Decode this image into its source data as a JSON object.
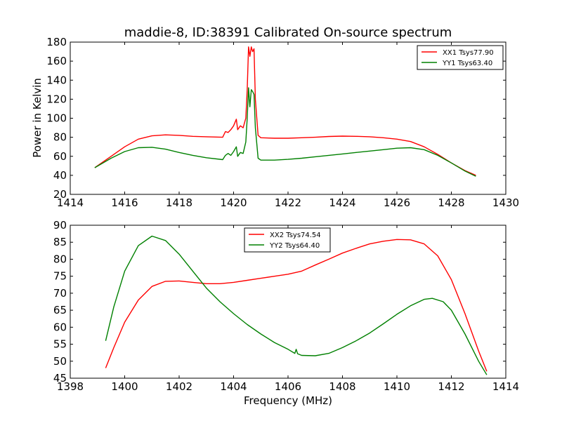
{
  "figure": {
    "title": "maddie-8, ID:38391 Calibrated On-source spectrum",
    "xlabel": "Frequency (MHz)",
    "ylabel_top": "Power in Kelvin"
  },
  "colors": {
    "red": "#ff0000",
    "green": "#008000",
    "axes": "#000000"
  },
  "chart_data": [
    {
      "type": "line",
      "xlim": [
        1414,
        1430
      ],
      "ylim": [
        20,
        180
      ],
      "xticks": [
        1414,
        1416,
        1418,
        1420,
        1422,
        1424,
        1426,
        1428,
        1430
      ],
      "yticks": [
        20,
        40,
        60,
        80,
        100,
        120,
        140,
        160,
        180
      ],
      "ylabel": "Power in Kelvin",
      "legend_position": "top-right",
      "series": [
        {
          "name": "XX1 Tsys77.90",
          "color": "#ff0000",
          "points": [
            [
              1414.9,
              48
            ],
            [
              1415.5,
              60
            ],
            [
              1416.0,
              70
            ],
            [
              1416.5,
              78
            ],
            [
              1417.0,
              81.5
            ],
            [
              1417.5,
              82.5
            ],
            [
              1418.0,
              82
            ],
            [
              1418.5,
              81
            ],
            [
              1419.0,
              80.5
            ],
            [
              1419.6,
              80
            ],
            [
              1419.7,
              86
            ],
            [
              1419.8,
              85
            ],
            [
              1419.9,
              88
            ],
            [
              1420.0,
              92
            ],
            [
              1420.1,
              99
            ],
            [
              1420.15,
              88
            ],
            [
              1420.25,
              92
            ],
            [
              1420.35,
              90
            ],
            [
              1420.45,
              100
            ],
            [
              1420.5,
              130
            ],
            [
              1420.55,
              175
            ],
            [
              1420.6,
              165
            ],
            [
              1420.65,
              175
            ],
            [
              1420.7,
              170
            ],
            [
              1420.75,
              173
            ],
            [
              1420.8,
              120
            ],
            [
              1420.9,
              82
            ],
            [
              1421.0,
              79.5
            ],
            [
              1421.5,
              79
            ],
            [
              1422.0,
              79
            ],
            [
              1422.5,
              79.5
            ],
            [
              1423.0,
              80
            ],
            [
              1423.5,
              80.8
            ],
            [
              1424.0,
              81.2
            ],
            [
              1424.5,
              81
            ],
            [
              1425.0,
              80.5
            ],
            [
              1425.5,
              79.5
            ],
            [
              1426.0,
              78
            ],
            [
              1426.5,
              75.5
            ],
            [
              1427.0,
              70
            ],
            [
              1427.5,
              62
            ],
            [
              1428.0,
              53
            ],
            [
              1428.5,
              45
            ],
            [
              1428.9,
              40
            ]
          ]
        },
        {
          "name": "YY1 Tsys63.40",
          "color": "#008000",
          "points": [
            [
              1414.9,
              48
            ],
            [
              1415.5,
              58
            ],
            [
              1416.0,
              65
            ],
            [
              1416.5,
              69
            ],
            [
              1417.0,
              69.5
            ],
            [
              1417.5,
              67.5
            ],
            [
              1418.0,
              64
            ],
            [
              1418.5,
              61
            ],
            [
              1419.0,
              58.5
            ],
            [
              1419.6,
              56.5
            ],
            [
              1419.7,
              61
            ],
            [
              1419.8,
              63
            ],
            [
              1419.9,
              61
            ],
            [
              1420.0,
              65
            ],
            [
              1420.1,
              70
            ],
            [
              1420.15,
              60
            ],
            [
              1420.25,
              64
            ],
            [
              1420.35,
              63
            ],
            [
              1420.45,
              75
            ],
            [
              1420.5,
              100
            ],
            [
              1420.55,
              132
            ],
            [
              1420.6,
              112
            ],
            [
              1420.65,
              130
            ],
            [
              1420.7,
              128
            ],
            [
              1420.75,
              125
            ],
            [
              1420.8,
              90
            ],
            [
              1420.9,
              58
            ],
            [
              1421.0,
              56
            ],
            [
              1421.5,
              56
            ],
            [
              1422.0,
              56.8
            ],
            [
              1422.5,
              58
            ],
            [
              1423.0,
              59.5
            ],
            [
              1423.5,
              61
            ],
            [
              1424.0,
              62.5
            ],
            [
              1424.5,
              64
            ],
            [
              1425.0,
              65.5
            ],
            [
              1425.5,
              67
            ],
            [
              1426.0,
              68.5
            ],
            [
              1426.5,
              69
            ],
            [
              1427.0,
              67
            ],
            [
              1427.5,
              61
            ],
            [
              1428.0,
              53
            ],
            [
              1428.5,
              44.5
            ],
            [
              1428.9,
              39
            ]
          ]
        }
      ]
    },
    {
      "type": "line",
      "xlim": [
        1398,
        1414
      ],
      "ylim": [
        45,
        90
      ],
      "xticks": [
        1398,
        1400,
        1402,
        1404,
        1406,
        1408,
        1410,
        1412,
        1414
      ],
      "yticks": [
        45,
        50,
        55,
        60,
        65,
        70,
        75,
        80,
        85,
        90
      ],
      "xlabel": "Frequency (MHz)",
      "legend_position": "top-center",
      "series": [
        {
          "name": "XX2 Tsys74.54",
          "color": "#ff0000",
          "points": [
            [
              1399.3,
              48
            ],
            [
              1399.6,
              54
            ],
            [
              1400.0,
              61.5
            ],
            [
              1400.5,
              68
            ],
            [
              1401.0,
              72
            ],
            [
              1401.5,
              73.5
            ],
            [
              1402.0,
              73.6
            ],
            [
              1402.5,
              73.2
            ],
            [
              1403.0,
              72.8
            ],
            [
              1403.5,
              72.8
            ],
            [
              1404.0,
              73.2
            ],
            [
              1404.5,
              73.8
            ],
            [
              1405.0,
              74.4
            ],
            [
              1405.5,
              75
            ],
            [
              1406.0,
              75.6
            ],
            [
              1406.5,
              76.5
            ],
            [
              1407.0,
              78.3
            ],
            [
              1407.5,
              80
            ],
            [
              1408.0,
              81.8
            ],
            [
              1408.5,
              83.2
            ],
            [
              1409.0,
              84.5
            ],
            [
              1409.5,
              85.3
            ],
            [
              1410.0,
              85.8
            ],
            [
              1410.5,
              85.7
            ],
            [
              1411.0,
              84.5
            ],
            [
              1411.5,
              81
            ],
            [
              1412.0,
              74
            ],
            [
              1412.5,
              64
            ],
            [
              1413.0,
              53
            ],
            [
              1413.3,
              47
            ]
          ]
        },
        {
          "name": "YY2 Tsys64.40",
          "color": "#008000",
          "points": [
            [
              1399.3,
              56
            ],
            [
              1399.6,
              66
            ],
            [
              1400.0,
              76.5
            ],
            [
              1400.5,
              84
            ],
            [
              1401.0,
              86.8
            ],
            [
              1401.5,
              85.5
            ],
            [
              1402.0,
              81.5
            ],
            [
              1402.5,
              76.5
            ],
            [
              1403.0,
              71.5
            ],
            [
              1403.5,
              67.5
            ],
            [
              1404.0,
              64
            ],
            [
              1404.5,
              60.8
            ],
            [
              1405.0,
              58
            ],
            [
              1405.5,
              55.5
            ],
            [
              1406.0,
              53.5
            ],
            [
              1406.25,
              52.3
            ],
            [
              1406.3,
              53.5
            ],
            [
              1406.35,
              52.2
            ],
            [
              1406.5,
              51.7
            ],
            [
              1407.0,
              51.6
            ],
            [
              1407.5,
              52.3
            ],
            [
              1408.0,
              54
            ],
            [
              1408.5,
              56
            ],
            [
              1409.0,
              58.3
            ],
            [
              1409.5,
              61
            ],
            [
              1410.0,
              63.8
            ],
            [
              1410.5,
              66.3
            ],
            [
              1411.0,
              68.2
            ],
            [
              1411.3,
              68.5
            ],
            [
              1411.7,
              67.5
            ],
            [
              1412.0,
              65
            ],
            [
              1412.5,
              58
            ],
            [
              1413.0,
              50
            ],
            [
              1413.3,
              46
            ]
          ]
        }
      ]
    }
  ]
}
